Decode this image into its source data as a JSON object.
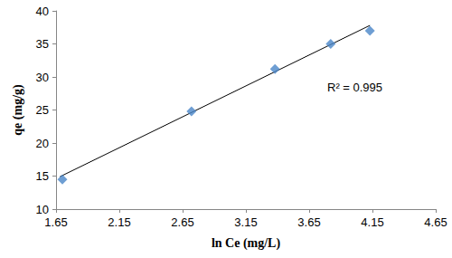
{
  "chart_data": {
    "type": "scatter",
    "x_label": "ln Ce (mg/L)",
    "y_label": "qe (mg/g)",
    "annotation": "R² = 0.995",
    "series": [
      {
        "type": "scatter",
        "color": "#4a86c8",
        "marker": "diamond",
        "x": [
          1.7,
          2.72,
          3.38,
          3.82,
          4.13
        ],
        "values": [
          14.5,
          24.8,
          31.2,
          35.0,
          37.0
        ]
      },
      {
        "type": "line",
        "color": "#000000",
        "line_style": "solid",
        "x": [
          1.68,
          4.13
        ],
        "values": [
          14.9,
          37.8
        ]
      }
    ],
    "xlim": [
      1.65,
      4.65
    ],
    "xticks": [
      1.65,
      2.15,
      2.65,
      3.15,
      3.65,
      4.15,
      4.65
    ],
    "ylim": [
      10,
      40
    ],
    "yticks": [
      10,
      15,
      20,
      25,
      30,
      35,
      40
    ],
    "grid": false
  }
}
